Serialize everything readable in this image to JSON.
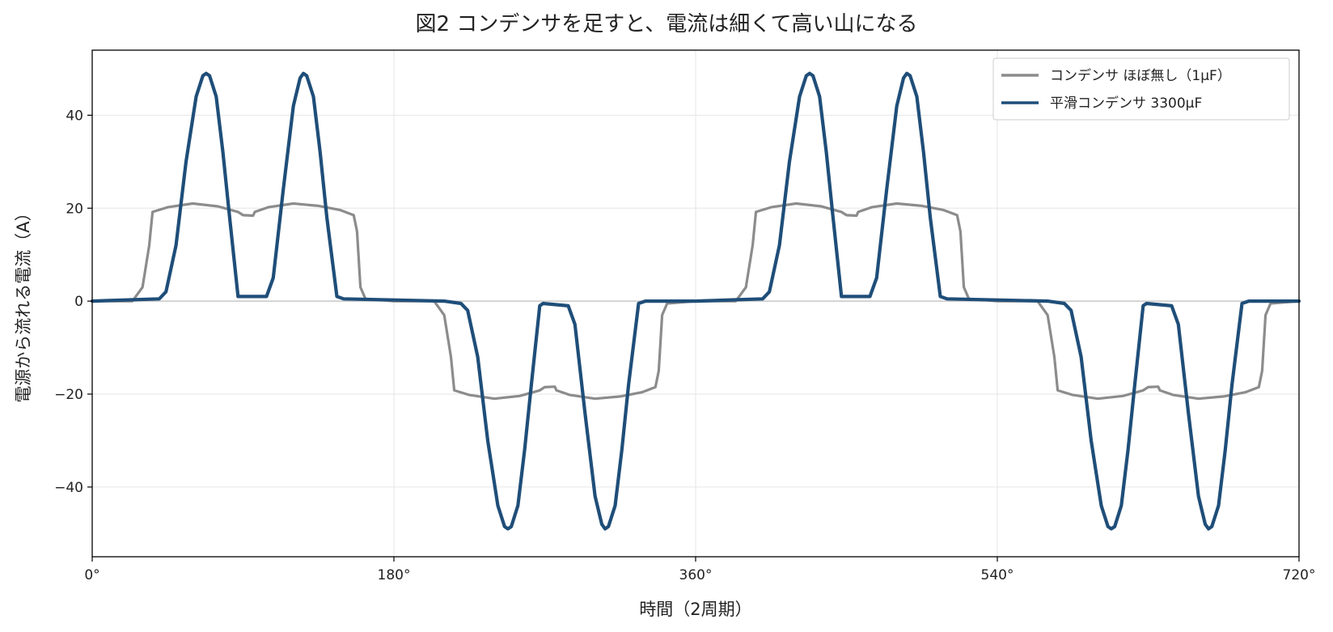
{
  "chart_data": {
    "type": "line",
    "title": "図2 コンデンサを足すと、電流は細くて高い山になる",
    "xlabel": "時間（2周期）",
    "ylabel": "電源から流れる電流（A）",
    "xlim": [
      0,
      720
    ],
    "ylim": [
      -55,
      54
    ],
    "x_ticks": [
      0,
      180,
      360,
      540,
      720
    ],
    "x_tick_labels": [
      "0°",
      "180°",
      "360°",
      "540°",
      "720°"
    ],
    "y_ticks": [
      -40,
      -20,
      0,
      20,
      40
    ],
    "y_tick_labels": [
      "−40",
      "−20",
      "0",
      "20",
      "40"
    ],
    "grid": true,
    "legend_position": "top-right",
    "series": [
      {
        "name": "コンデンサ ほぼ無し（1μF）",
        "color": "#8c8c8c",
        "points": [
          [
            0,
            0
          ],
          [
            24,
            0
          ],
          [
            30,
            3
          ],
          [
            34,
            12
          ],
          [
            36,
            19.2
          ],
          [
            45,
            20.2
          ],
          [
            60,
            21
          ],
          [
            75,
            20.4
          ],
          [
            87,
            19.2
          ],
          [
            90,
            18.5
          ],
          [
            96,
            18.4
          ],
          [
            97,
            19.2
          ],
          [
            105,
            20.2
          ],
          [
            120,
            21
          ],
          [
            135,
            20.5
          ],
          [
            148,
            19.6
          ],
          [
            156,
            18.5
          ],
          [
            158,
            15
          ],
          [
            160,
            3
          ],
          [
            163,
            0.5
          ],
          [
            180,
            0
          ],
          [
            204,
            0
          ],
          [
            210,
            -3
          ],
          [
            214,
            -12
          ],
          [
            216,
            -19.2
          ],
          [
            225,
            -20.2
          ],
          [
            240,
            -21
          ],
          [
            255,
            -20.4
          ],
          [
            267,
            -19.2
          ],
          [
            270,
            -18.5
          ],
          [
            276,
            -18.4
          ],
          [
            277,
            -19.2
          ],
          [
            285,
            -20.2
          ],
          [
            300,
            -21
          ],
          [
            315,
            -20.5
          ],
          [
            328,
            -19.6
          ],
          [
            336,
            -18.5
          ],
          [
            338,
            -15
          ],
          [
            340,
            -3
          ],
          [
            343,
            -0.5
          ],
          [
            360,
            0
          ],
          [
            384,
            0
          ],
          [
            390,
            3
          ],
          [
            394,
            12
          ],
          [
            396,
            19.2
          ],
          [
            405,
            20.2
          ],
          [
            420,
            21
          ],
          [
            435,
            20.4
          ],
          [
            447,
            19.2
          ],
          [
            450,
            18.5
          ],
          [
            456,
            18.4
          ],
          [
            457,
            19.2
          ],
          [
            465,
            20.2
          ],
          [
            480,
            21
          ],
          [
            495,
            20.5
          ],
          [
            508,
            19.6
          ],
          [
            516,
            18.5
          ],
          [
            518,
            15
          ],
          [
            520,
            3
          ],
          [
            523,
            0.5
          ],
          [
            540,
            0
          ],
          [
            564,
            0
          ],
          [
            570,
            -3
          ],
          [
            574,
            -12
          ],
          [
            576,
            -19.2
          ],
          [
            585,
            -20.2
          ],
          [
            600,
            -21
          ],
          [
            615,
            -20.4
          ],
          [
            627,
            -19.2
          ],
          [
            630,
            -18.5
          ],
          [
            636,
            -18.4
          ],
          [
            637,
            -19.2
          ],
          [
            645,
            -20.2
          ],
          [
            660,
            -21
          ],
          [
            675,
            -20.5
          ],
          [
            688,
            -19.6
          ],
          [
            696,
            -18.5
          ],
          [
            698,
            -15
          ],
          [
            700,
            -3
          ],
          [
            703,
            -0.5
          ],
          [
            720,
            0
          ]
        ]
      },
      {
        "name": "平滑コンデンサ 3300μF",
        "color": "#1f4e79",
        "points": [
          [
            0,
            0
          ],
          [
            40,
            0.5
          ],
          [
            44,
            2
          ],
          [
            50,
            12
          ],
          [
            56,
            30
          ],
          [
            62,
            44
          ],
          [
            66,
            48.5
          ],
          [
            68,
            49
          ],
          [
            70,
            48.5
          ],
          [
            74,
            44
          ],
          [
            78,
            32
          ],
          [
            82,
            18
          ],
          [
            87,
            1
          ],
          [
            89,
            1
          ],
          [
            104,
            1
          ],
          [
            108,
            5
          ],
          [
            114,
            24
          ],
          [
            120,
            42
          ],
          [
            124,
            48
          ],
          [
            126,
            49
          ],
          [
            128,
            48.5
          ],
          [
            132,
            44
          ],
          [
            136,
            32
          ],
          [
            140,
            18
          ],
          [
            146,
            1
          ],
          [
            150,
            0.5
          ],
          [
            210,
            0
          ],
          [
            220,
            -0.5
          ],
          [
            224,
            -2
          ],
          [
            230,
            -12
          ],
          [
            236,
            -30
          ],
          [
            242,
            -44
          ],
          [
            246,
            -48.5
          ],
          [
            248,
            -49
          ],
          [
            250,
            -48.5
          ],
          [
            254,
            -44
          ],
          [
            258,
            -32
          ],
          [
            262,
            -18
          ],
          [
            267,
            -1
          ],
          [
            269,
            -0.5
          ],
          [
            284,
            -1
          ],
          [
            288,
            -5
          ],
          [
            294,
            -24
          ],
          [
            300,
            -42
          ],
          [
            304,
            -48
          ],
          [
            306,
            -49
          ],
          [
            308,
            -48.5
          ],
          [
            312,
            -44
          ],
          [
            316,
            -32
          ],
          [
            320,
            -18
          ],
          [
            326,
            -0.5
          ],
          [
            330,
            0
          ],
          [
            360,
            0
          ],
          [
            400,
            0.5
          ],
          [
            404,
            2
          ],
          [
            410,
            12
          ],
          [
            416,
            30
          ],
          [
            422,
            44
          ],
          [
            426,
            48.5
          ],
          [
            428,
            49
          ],
          [
            430,
            48.5
          ],
          [
            434,
            44
          ],
          [
            438,
            32
          ],
          [
            442,
            18
          ],
          [
            447,
            1
          ],
          [
            449,
            1
          ],
          [
            464,
            1
          ],
          [
            468,
            5
          ],
          [
            474,
            24
          ],
          [
            480,
            42
          ],
          [
            484,
            48
          ],
          [
            486,
            49
          ],
          [
            488,
            48.5
          ],
          [
            492,
            44
          ],
          [
            496,
            32
          ],
          [
            500,
            18
          ],
          [
            506,
            1
          ],
          [
            510,
            0.5
          ],
          [
            570,
            0
          ],
          [
            580,
            -0.5
          ],
          [
            584,
            -2
          ],
          [
            590,
            -12
          ],
          [
            596,
            -30
          ],
          [
            602,
            -44
          ],
          [
            606,
            -48.5
          ],
          [
            608,
            -49
          ],
          [
            610,
            -48.5
          ],
          [
            614,
            -44
          ],
          [
            618,
            -32
          ],
          [
            622,
            -18
          ],
          [
            627,
            -1
          ],
          [
            629,
            -0.5
          ],
          [
            644,
            -1
          ],
          [
            648,
            -5
          ],
          [
            654,
            -24
          ],
          [
            660,
            -42
          ],
          [
            664,
            -48
          ],
          [
            666,
            -49
          ],
          [
            668,
            -48.5
          ],
          [
            672,
            -44
          ],
          [
            676,
            -32
          ],
          [
            680,
            -18
          ],
          [
            686,
            -0.5
          ],
          [
            690,
            0
          ],
          [
            720,
            0
          ]
        ]
      }
    ]
  }
}
